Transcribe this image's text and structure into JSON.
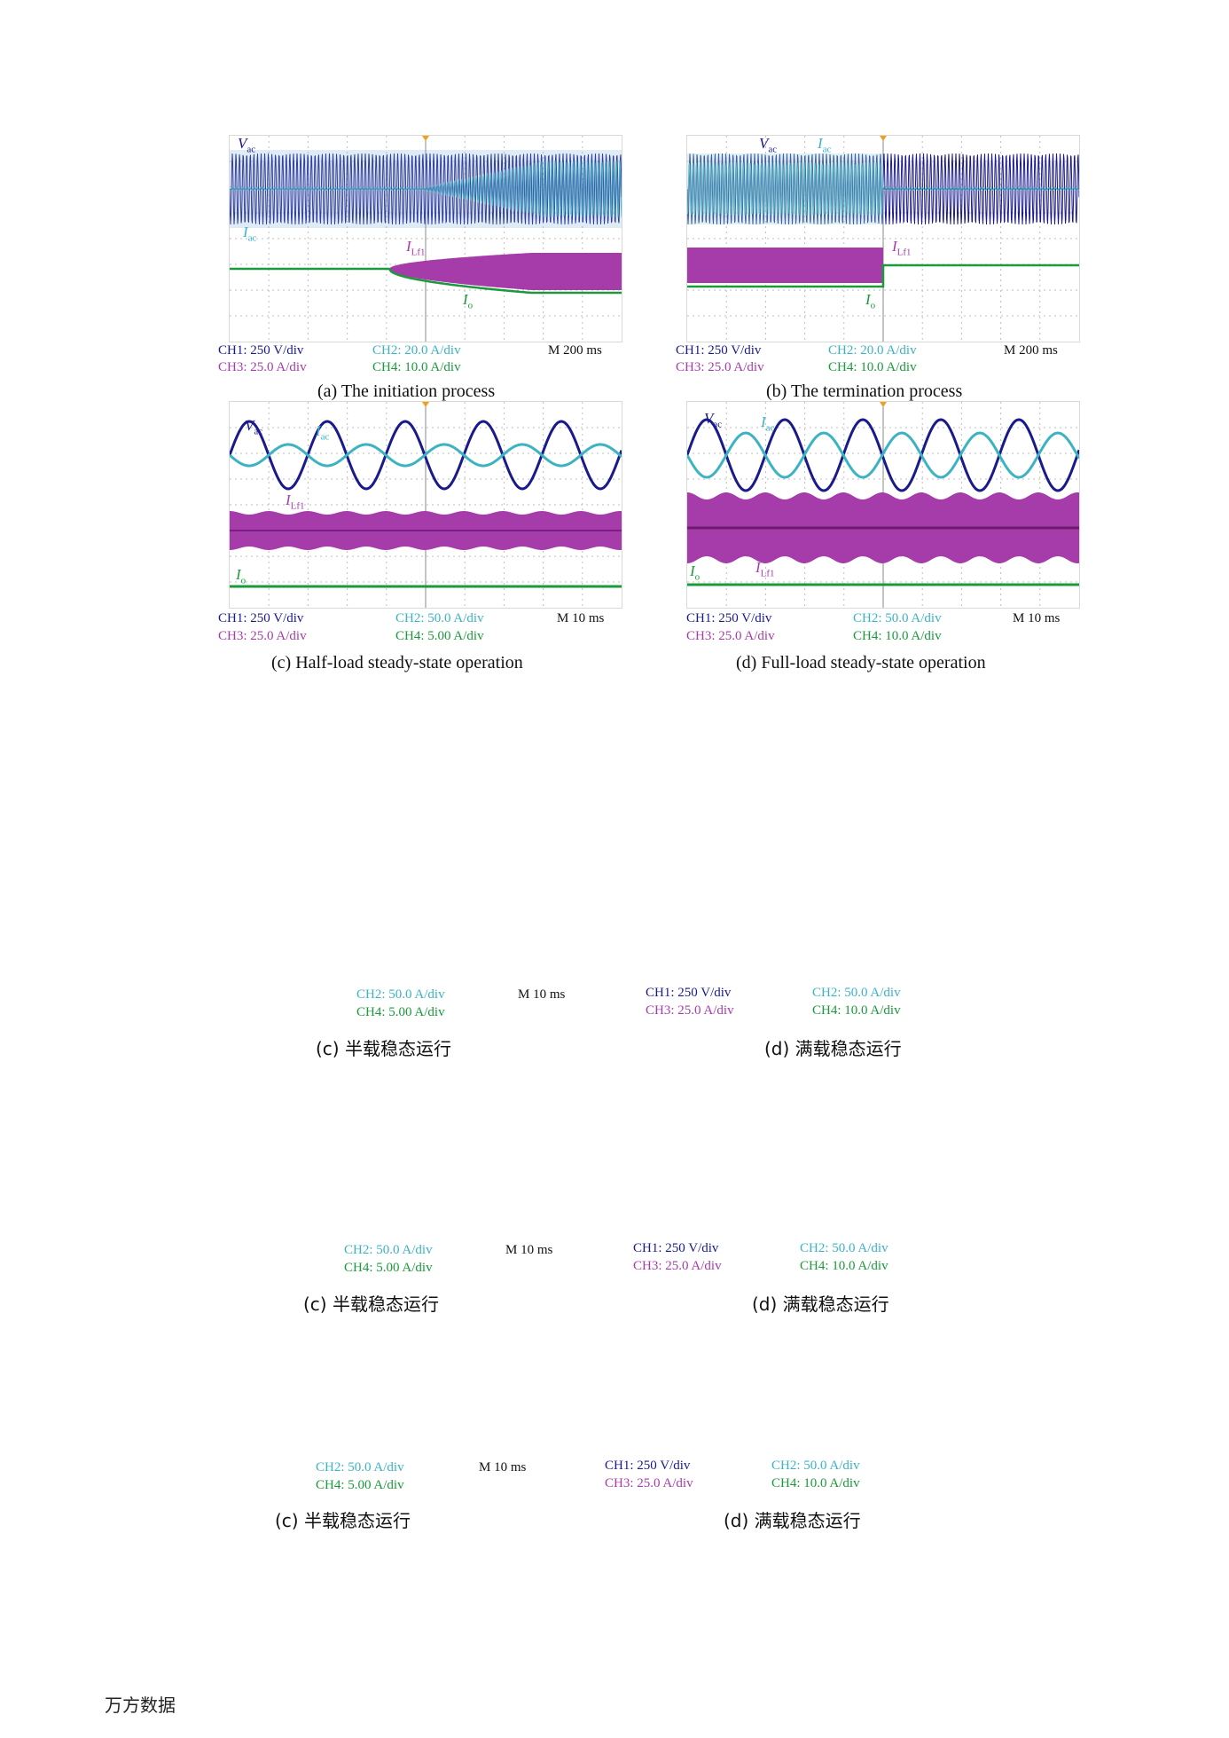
{
  "colors": {
    "ch1": "#1a1a8c",
    "ch2": "#3bb3c3",
    "ch3": "#a63caa",
    "ch4": "#1a9a3a",
    "grid": "#bfbfbf",
    "trigger": "#f0a020"
  },
  "panels": [
    {
      "id": "a",
      "ch1": "CH1: 250 V/div",
      "ch2": "CH2: 20.0 A/div",
      "ch3": "CH3: 25.0 A/div",
      "ch4": "CH4: 10.0 A/div",
      "time": "M 200 ms",
      "caption": "(a) The initiation process",
      "labels": {
        "vac": "V",
        "vac_sub": "ac",
        "iac": "I",
        "iac_sub": "ac",
        "ilf": "I",
        "ilf_sub": "Lf1",
        "io": "I",
        "io_sub": "o"
      }
    },
    {
      "id": "b",
      "ch1": "CH1: 250 V/div",
      "ch2": "CH2: 20.0 A/div",
      "ch3": "CH3: 25.0 A/div",
      "ch4": "CH4: 10.0 A/div",
      "time": "M 200 ms",
      "caption": "(b) The termination process",
      "labels": {
        "vac": "V",
        "vac_sub": "ac",
        "iac": "I",
        "iac_sub": "ac",
        "ilf": "I",
        "ilf_sub": "Lf1",
        "io": "I",
        "io_sub": "o"
      }
    },
    {
      "id": "c",
      "ch1": "CH1: 250 V/div",
      "ch2": "CH2: 50.0 A/div",
      "ch3": "CH3: 25.0 A/div",
      "ch4": "CH4: 5.00 A/div",
      "time": "M 10 ms",
      "caption": "(c) Half-load steady-state operation",
      "labels": {
        "vac": "V",
        "vac_sub": "ac",
        "iac": "I",
        "iac_sub": "ac",
        "ilf": "I",
        "ilf_sub": "Lf1",
        "io": "I",
        "io_sub": "o"
      }
    },
    {
      "id": "d",
      "ch1": "CH1: 250 V/div",
      "ch2": "CH2: 50.0 A/div",
      "ch3": "CH3: 25.0 A/div",
      "ch4": "CH4: 10.0 A/div",
      "time": "M 10 ms",
      "caption": "(d) Full-load steady-state operation",
      "labels": {
        "vac": "V",
        "vac_sub": "ac",
        "iac": "I",
        "iac_sub": "ac",
        "ilf": "I",
        "ilf_sub": "Lf1",
        "io": "I",
        "io_sub": "o"
      }
    }
  ],
  "ghost_blocks": [
    {
      "left_ch2": "CH2: 50.0 A/div",
      "left_ch4": "CH4: 5.00 A/div",
      "left_time": "M 10 ms",
      "right_ch1": "CH1: 250 V/div",
      "right_ch3": "CH3: 25.0 A/div",
      "right_ch2": "CH2: 50.0 A/div",
      "right_ch4": "CH4: 10.0 A/div",
      "caption_c": "(c) 半载稳态运行",
      "caption_d": "(d) 满载稳态运行"
    },
    {
      "left_ch2": "CH2: 50.0 A/div",
      "left_ch4": "CH4: 5.00 A/div",
      "left_time": "M 10 ms",
      "right_ch1": "CH1: 250 V/div",
      "right_ch3": "CH3: 25.0 A/div",
      "right_ch2": "CH2: 50.0 A/div",
      "right_ch4": "CH4: 10.0 A/div",
      "caption_c": "(c) 半载稳态运行",
      "caption_d": "(d) 满载稳态运行"
    },
    {
      "left_ch2": "CH2: 50.0 A/div",
      "left_ch4": "CH4: 5.00 A/div",
      "left_time": "M 10 ms",
      "right_ch1": "CH1: 250 V/div",
      "right_ch3": "CH3: 25.0 A/div",
      "right_ch2": "CH2: 50.0 A/div",
      "right_ch4": "CH4: 10.0 A/div",
      "caption_c": "(c) 半载稳态运行",
      "caption_d": "(d) 满载稳态运行"
    }
  ],
  "footer": "万方数据"
}
